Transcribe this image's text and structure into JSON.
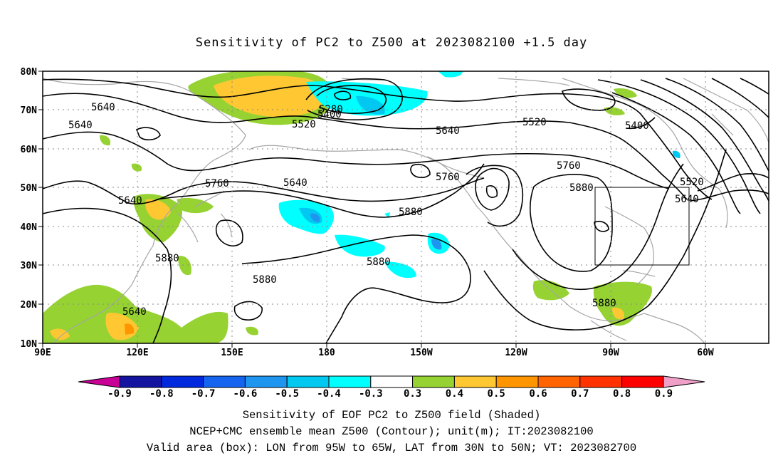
{
  "title": "Sensitivity of PC2 to Z500 at 2023082100 +1.5 day",
  "map": {
    "lat_labels": [
      "80N",
      "70N",
      "60N",
      "50N",
      "40N",
      "30N",
      "20N",
      "10N"
    ],
    "lon_labels": [
      "90E",
      "120E",
      "150E",
      "180",
      "150W",
      "120W",
      "90W",
      "60W"
    ],
    "valid_box": {
      "lon_min": -95,
      "lon_max": -65,
      "lat_min": 30,
      "lat_max": 50
    },
    "contour_labels": [
      "5280",
      "5400",
      "5520",
      "5640",
      "5640",
      "5640",
      "5640",
      "5760",
      "5640",
      "5760",
      "5880",
      "5880",
      "5880",
      "5880",
      "5640",
      "5520",
      "5400",
      "5760",
      "5520",
      "5640",
      "5880",
      "5880"
    ],
    "colors": {
      "coast": "#a6a6a6",
      "contour": "#000000",
      "grid": "#888888"
    }
  },
  "colorbar": {
    "labels": [
      "-0.9",
      "-0.8",
      "-0.7",
      "-0.6",
      "-0.5",
      "-0.4",
      "-0.3",
      "0.3",
      "0.4",
      "0.5",
      "0.6",
      "0.7",
      "0.8",
      "0.9"
    ],
    "colors": [
      "#c80096",
      "#1414a0",
      "#0028dc",
      "#1464f0",
      "#1e96f0",
      "#00c8f0",
      "#00ffff",
      "#ffffff",
      "#96d232",
      "#ffc832",
      "#ff9600",
      "#ff6400",
      "#ff3200",
      "#ff0000",
      "#f0a0c8"
    ]
  },
  "footer": {
    "line1": "Sensitivity of EOF PC2 to Z500 field (Shaded)",
    "line2": "NCEP+CMC ensemble mean Z500 (Contour); unit(m); IT:2023082100",
    "line3": "Valid area (box): LON from 95W to 65W, LAT from 30N to 50N; VT: 2023082700"
  }
}
